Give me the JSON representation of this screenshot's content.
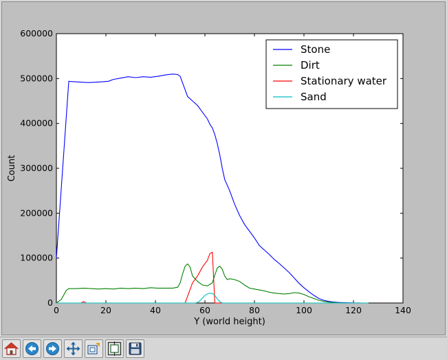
{
  "toolbar": {
    "buttons": [
      {
        "name": "home-button",
        "icon": "home-icon"
      },
      {
        "name": "back-button",
        "icon": "arrow-left-icon"
      },
      {
        "name": "forward-button",
        "icon": "arrow-right-icon"
      },
      {
        "name": "pan-button",
        "icon": "move-icon"
      },
      {
        "name": "zoom-button",
        "icon": "zoom-rect-icon"
      },
      {
        "name": "subplots-button",
        "icon": "subplots-icon"
      },
      {
        "name": "save-button",
        "icon": "floppy-disk-icon"
      }
    ]
  },
  "chart_data": {
    "type": "line",
    "title": "",
    "xlabel": "Y (world height)",
    "ylabel": "Count",
    "xlim": [
      0,
      140
    ],
    "ylim": [
      0,
      600000
    ],
    "xticks": [
      0,
      20,
      40,
      60,
      80,
      100,
      120,
      140
    ],
    "yticks": [
      0,
      100000,
      200000,
      300000,
      400000,
      500000,
      600000
    ],
    "grid": false,
    "legend_position": "top-right",
    "series": [
      {
        "name": "Stone",
        "color": "#0000ff",
        "points": [
          [
            0,
            100000
          ],
          [
            5,
            494000
          ],
          [
            7,
            493000
          ],
          [
            10,
            492000
          ],
          [
            13,
            491000
          ],
          [
            16,
            492000
          ],
          [
            19,
            493000
          ],
          [
            21,
            494000
          ],
          [
            23,
            498000
          ],
          [
            26,
            501000
          ],
          [
            29,
            504000
          ],
          [
            32,
            502000
          ],
          [
            35,
            504000
          ],
          [
            38,
            503000
          ],
          [
            41,
            505000
          ],
          [
            44,
            508000
          ],
          [
            47,
            510000
          ],
          [
            49,
            509000
          ],
          [
            50,
            505000
          ],
          [
            51,
            490000
          ],
          [
            52,
            475000
          ],
          [
            53,
            460000
          ],
          [
            55,
            450000
          ],
          [
            57,
            440000
          ],
          [
            59,
            425000
          ],
          [
            61,
            410000
          ],
          [
            62,
            398000
          ],
          [
            63,
            390000
          ],
          [
            64,
            375000
          ],
          [
            65,
            355000
          ],
          [
            66,
            330000
          ],
          [
            67,
            300000
          ],
          [
            68,
            275000
          ],
          [
            70,
            250000
          ],
          [
            72,
            220000
          ],
          [
            74,
            195000
          ],
          [
            76,
            175000
          ],
          [
            78,
            160000
          ],
          [
            80,
            145000
          ],
          [
            82,
            128000
          ],
          [
            84,
            118000
          ],
          [
            86,
            108000
          ],
          [
            88,
            97000
          ],
          [
            90,
            88000
          ],
          [
            92,
            78000
          ],
          [
            94,
            68000
          ],
          [
            96,
            56000
          ],
          [
            98,
            44000
          ],
          [
            100,
            34000
          ],
          [
            102,
            25000
          ],
          [
            104,
            17000
          ],
          [
            106,
            10000
          ],
          [
            108,
            6000
          ],
          [
            110,
            3500
          ],
          [
            112,
            2000
          ],
          [
            114,
            1200
          ],
          [
            116,
            700
          ],
          [
            118,
            400
          ],
          [
            120,
            200
          ],
          [
            122,
            80
          ],
          [
            124,
            20
          ],
          [
            126,
            0
          ]
        ]
      },
      {
        "name": "Dirt",
        "color": "#008000",
        "points": [
          [
            0,
            0
          ],
          [
            2,
            8000
          ],
          [
            4,
            28000
          ],
          [
            5,
            32000
          ],
          [
            8,
            32000
          ],
          [
            11,
            33000
          ],
          [
            14,
            32000
          ],
          [
            17,
            31000
          ],
          [
            20,
            32000
          ],
          [
            23,
            31000
          ],
          [
            26,
            33000
          ],
          [
            29,
            32000
          ],
          [
            32,
            33000
          ],
          [
            35,
            32000
          ],
          [
            38,
            34000
          ],
          [
            41,
            33000
          ],
          [
            44,
            33000
          ],
          [
            47,
            33000
          ],
          [
            49,
            35000
          ],
          [
            50,
            45000
          ],
          [
            51,
            65000
          ],
          [
            52,
            82000
          ],
          [
            53,
            87000
          ],
          [
            54,
            80000
          ],
          [
            55,
            60000
          ],
          [
            57,
            48000
          ],
          [
            59,
            40000
          ],
          [
            61,
            38000
          ],
          [
            63,
            45000
          ],
          [
            64,
            62000
          ],
          [
            65,
            78000
          ],
          [
            66,
            82000
          ],
          [
            67,
            75000
          ],
          [
            68,
            60000
          ],
          [
            69,
            52000
          ],
          [
            70,
            54000
          ],
          [
            72,
            52000
          ],
          [
            74,
            48000
          ],
          [
            76,
            40000
          ],
          [
            78,
            33000
          ],
          [
            80,
            31000
          ],
          [
            82,
            29000
          ],
          [
            84,
            27000
          ],
          [
            86,
            24000
          ],
          [
            88,
            22000
          ],
          [
            90,
            21000
          ],
          [
            92,
            20000
          ],
          [
            94,
            21000
          ],
          [
            96,
            23000
          ],
          [
            98,
            22000
          ],
          [
            100,
            19000
          ],
          [
            102,
            14000
          ],
          [
            104,
            10000
          ],
          [
            106,
            6000
          ],
          [
            108,
            3500
          ],
          [
            110,
            2000
          ],
          [
            112,
            1000
          ],
          [
            114,
            500
          ],
          [
            116,
            200
          ],
          [
            118,
            80
          ],
          [
            120,
            30
          ],
          [
            122,
            10
          ],
          [
            126,
            0
          ]
        ]
      },
      {
        "name": "Stationary water",
        "color": "#ff0000",
        "points": [
          [
            0,
            0
          ],
          [
            10,
            0
          ],
          [
            11,
            3000
          ],
          [
            12,
            0
          ],
          [
            52,
            0
          ],
          [
            53,
            15000
          ],
          [
            54,
            30000
          ],
          [
            55,
            45000
          ],
          [
            57,
            60000
          ],
          [
            59,
            80000
          ],
          [
            61,
            95000
          ],
          [
            62,
            110000
          ],
          [
            63,
            113000
          ],
          [
            64,
            0
          ],
          [
            126,
            0
          ]
        ]
      },
      {
        "name": "Sand",
        "color": "#00bfbf",
        "points": [
          [
            0,
            0
          ],
          [
            56,
            0
          ],
          [
            57,
            1000
          ],
          [
            58,
            5000
          ],
          [
            59,
            11000
          ],
          [
            60,
            17000
          ],
          [
            61,
            20000
          ],
          [
            62,
            22000
          ],
          [
            63,
            21000
          ],
          [
            64,
            17000
          ],
          [
            65,
            9000
          ],
          [
            66,
            3000
          ],
          [
            67,
            0
          ],
          [
            126,
            0
          ]
        ]
      }
    ]
  }
}
